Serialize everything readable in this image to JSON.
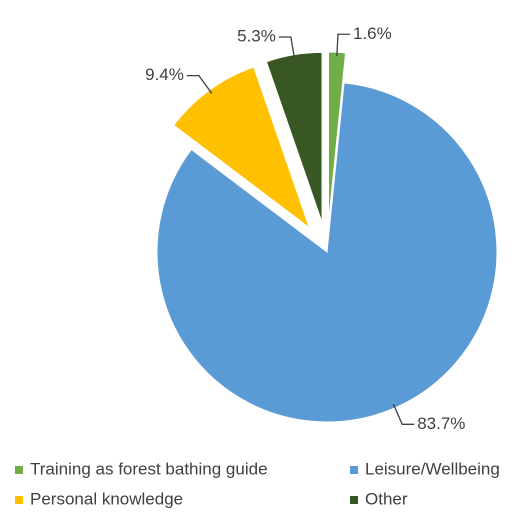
{
  "chart_data": {
    "type": "pie",
    "categories": [
      "Training as forest bathing guide",
      "Leisure/Wellbeing",
      "Personal knowledge",
      "Other"
    ],
    "values": [
      1.6,
      83.7,
      9.4,
      5.3
    ],
    "value_labels": [
      "1.6%",
      "83.7%",
      "9.4%",
      "5.3%"
    ],
    "colors": [
      "#70ad47",
      "#5b9bd5",
      "#ffc000",
      "#385723"
    ],
    "exploded": [
      true,
      false,
      true,
      true
    ],
    "legend": "bottom"
  }
}
